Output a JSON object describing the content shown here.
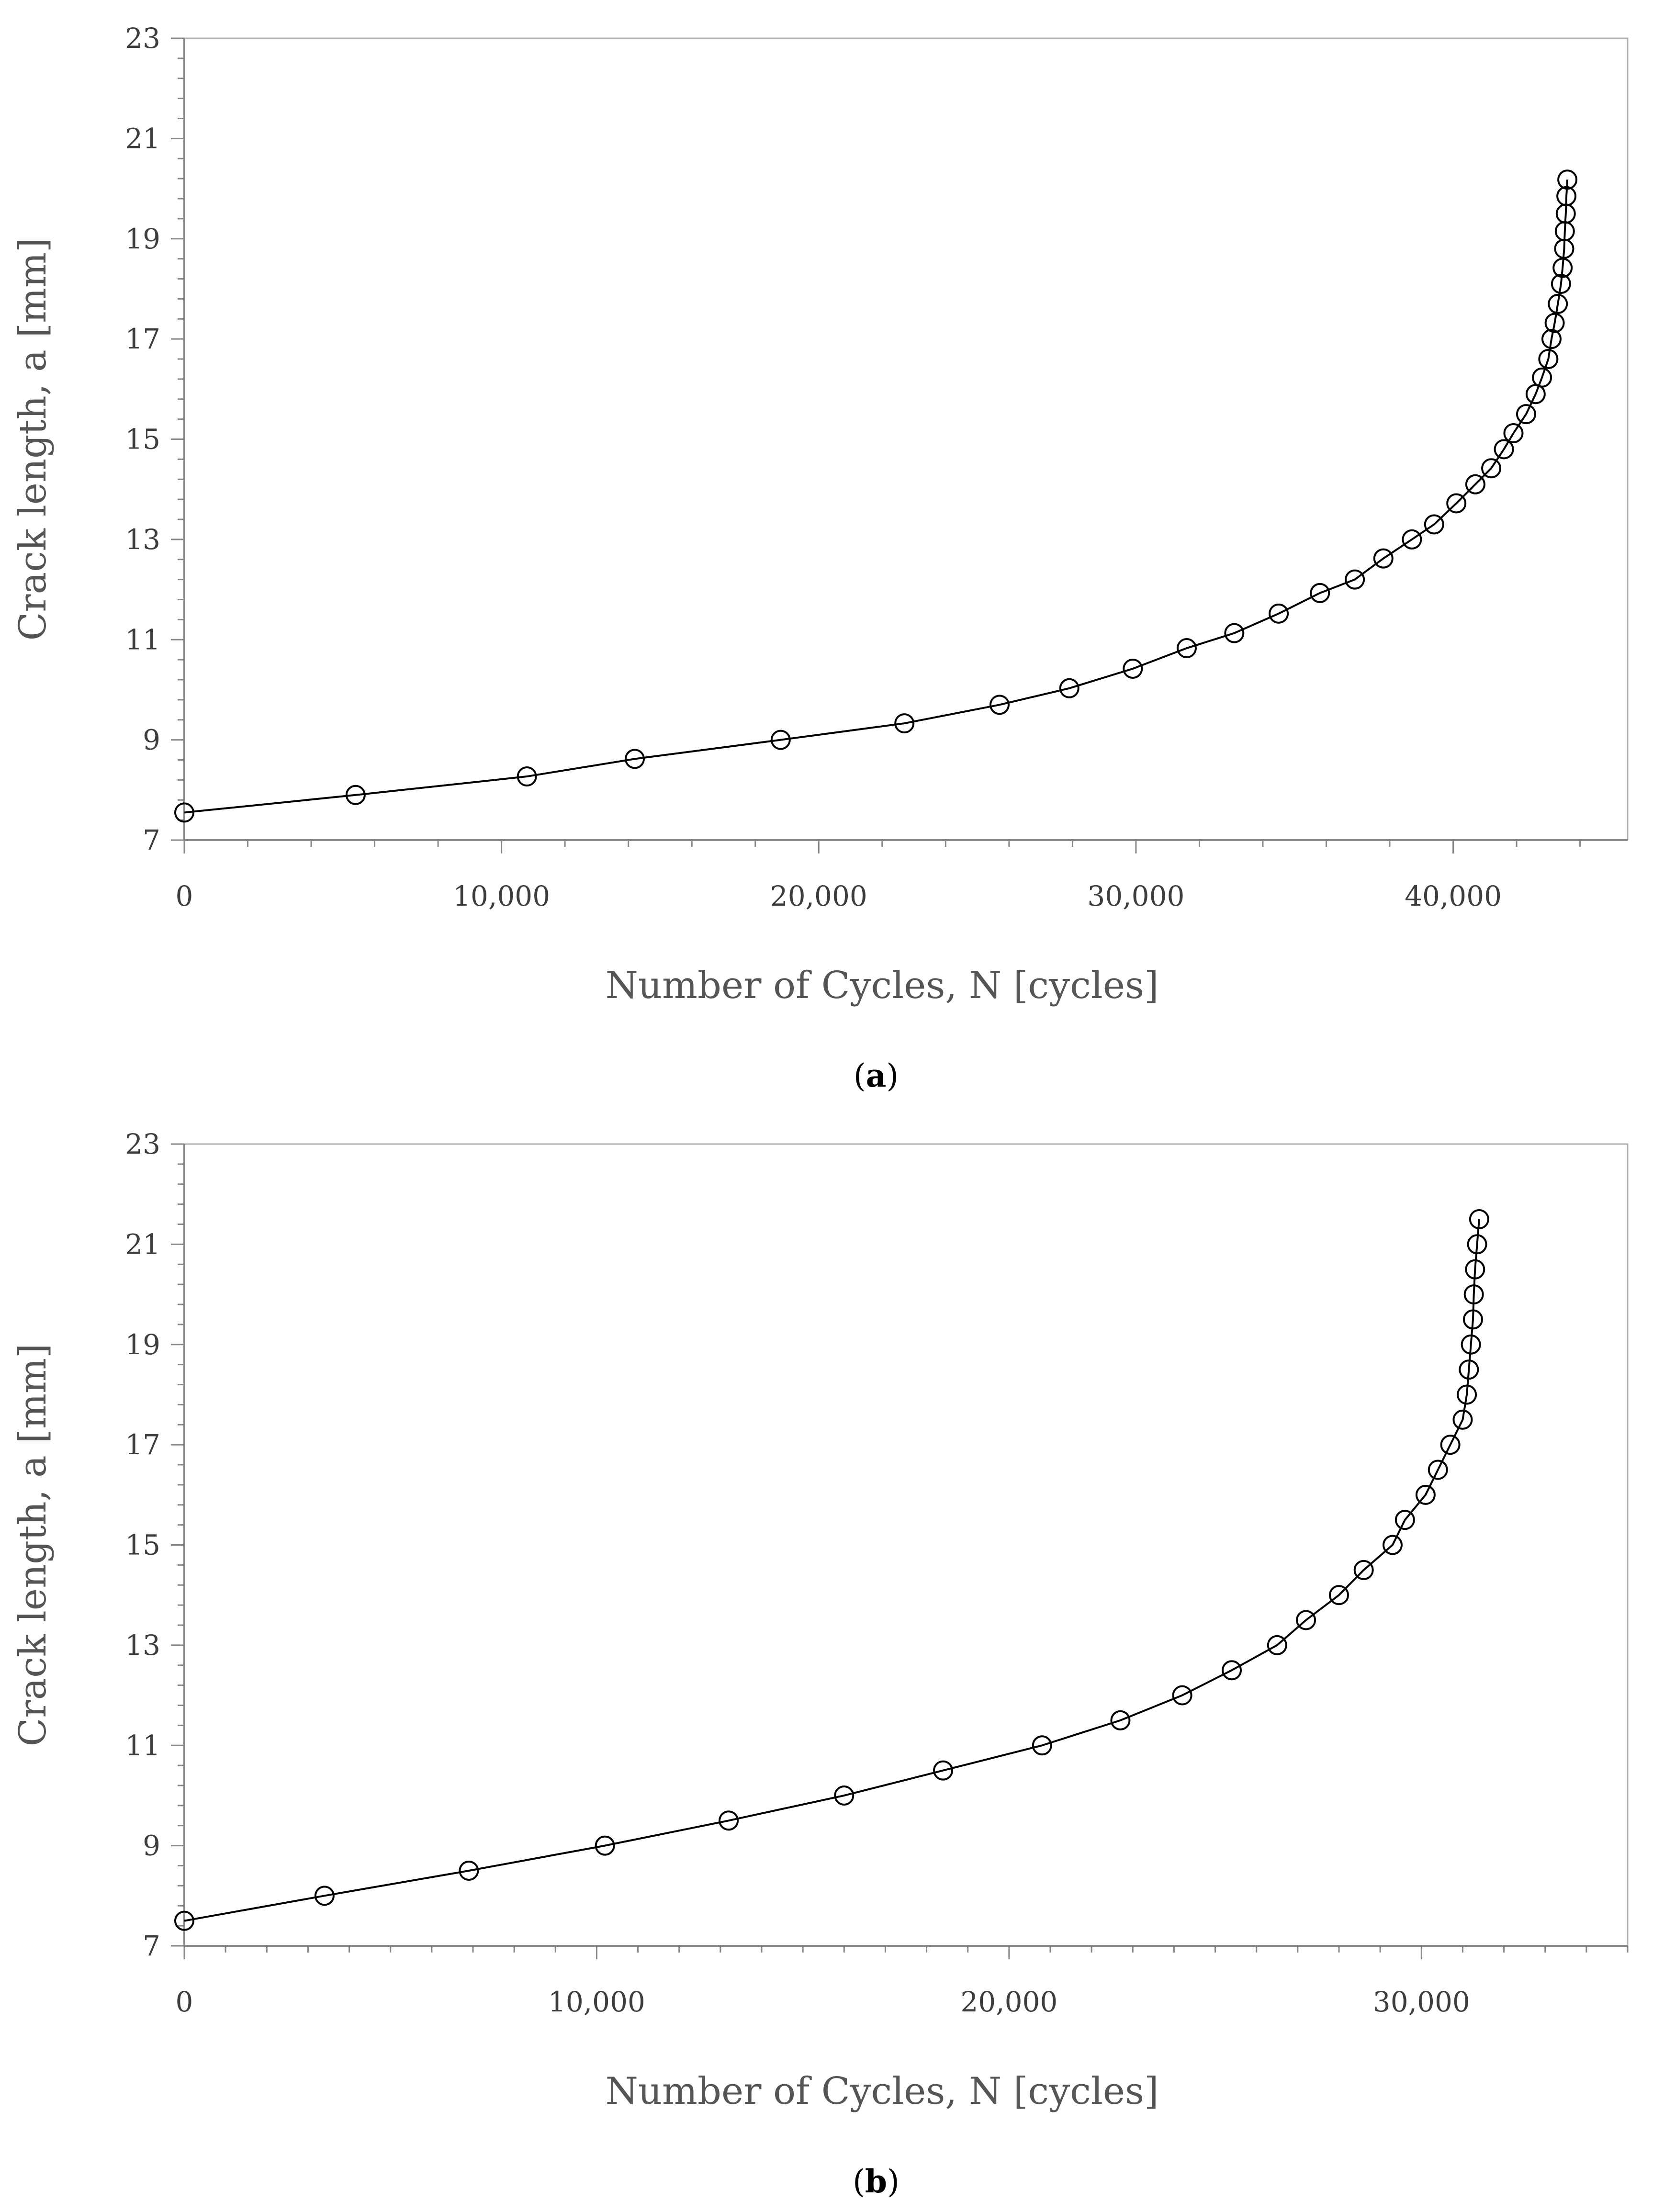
{
  "chart_data": [
    {
      "type": "scatter",
      "panel_label": "a",
      "xlabel": "Number of Cycles, N [cycles]",
      "ylabel": "Crack length, a [mm]",
      "xlim": [
        0,
        45500
      ],
      "ylim": [
        7,
        23
      ],
      "x_ticks": [
        0,
        10000,
        20000,
        30000,
        40000
      ],
      "x_tick_labels": [
        "0",
        "10,000",
        "20,000",
        "30,000",
        "40,000"
      ],
      "y_ticks": [
        7,
        9,
        11,
        13,
        15,
        17,
        19,
        21,
        23
      ],
      "y_tick_labels": [
        "7",
        "9",
        "11",
        "13",
        "15",
        "17",
        "19",
        "21",
        "23"
      ],
      "x_minor_step": 2000,
      "y_minor_step": 0.4,
      "grid": false,
      "marker": "open-circle",
      "series": [
        {
          "points": [
            [
              0,
              7.55
            ],
            [
              5400,
              7.9
            ],
            [
              10800,
              8.27
            ],
            [
              14200,
              8.62
            ],
            [
              18800,
              9.0
            ],
            [
              22700,
              9.33
            ],
            [
              25700,
              9.7
            ],
            [
              27900,
              10.03
            ],
            [
              29900,
              10.42
            ],
            [
              31600,
              10.83
            ],
            [
              33100,
              11.13
            ],
            [
              34500,
              11.52
            ],
            [
              35800,
              11.93
            ],
            [
              36900,
              12.2
            ],
            [
              37800,
              12.62
            ],
            [
              38700,
              13.0
            ],
            [
              39400,
              13.3
            ],
            [
              40100,
              13.72
            ],
            [
              40700,
              14.1
            ],
            [
              41200,
              14.42
            ],
            [
              41600,
              14.8
            ],
            [
              41900,
              15.12
            ],
            [
              42300,
              15.5
            ],
            [
              42600,
              15.9
            ],
            [
              42800,
              16.23
            ],
            [
              43000,
              16.6
            ],
            [
              43100,
              17.0
            ],
            [
              43200,
              17.32
            ],
            [
              43300,
              17.7
            ],
            [
              43400,
              18.1
            ],
            [
              43450,
              18.42
            ],
            [
              43500,
              18.8
            ],
            [
              43520,
              19.15
            ],
            [
              43550,
              19.5
            ],
            [
              43570,
              19.85
            ],
            [
              43600,
              20.18
            ]
          ]
        }
      ]
    },
    {
      "type": "scatter",
      "panel_label": "b",
      "xlabel": "Number of Cycles, N [cycles]",
      "ylabel": "Crack length, a [mm]",
      "xlim": [
        0,
        35000
      ],
      "ylim": [
        7,
        23
      ],
      "x_ticks": [
        0,
        10000,
        20000,
        30000
      ],
      "x_tick_labels": [
        "0",
        "10,000",
        "20,000",
        "30,000"
      ],
      "y_ticks": [
        7,
        9,
        11,
        13,
        15,
        17,
        19,
        21,
        23
      ],
      "y_tick_labels": [
        "7",
        "9",
        "11",
        "13",
        "15",
        "17",
        "19",
        "21",
        "23"
      ],
      "x_minor_step": 1000,
      "y_minor_step": 0.4,
      "grid": false,
      "marker": "open-circle",
      "series": [
        {
          "points": [
            [
              0,
              7.5
            ],
            [
              3400,
              8.0
            ],
            [
              6900,
              8.5
            ],
            [
              10200,
              9.0
            ],
            [
              13200,
              9.5
            ],
            [
              16000,
              10.0
            ],
            [
              18400,
              10.5
            ],
            [
              20800,
              11.0
            ],
            [
              22700,
              11.5
            ],
            [
              24200,
              12.0
            ],
            [
              25400,
              12.5
            ],
            [
              26500,
              13.0
            ],
            [
              27200,
              13.5
            ],
            [
              28000,
              14.0
            ],
            [
              28600,
              14.5
            ],
            [
              29300,
              15.0
            ],
            [
              29600,
              15.5
            ],
            [
              30100,
              16.0
            ],
            [
              30400,
              16.5
            ],
            [
              30700,
              17.0
            ],
            [
              31000,
              17.5
            ],
            [
              31100,
              18.0
            ],
            [
              31150,
              18.5
            ],
            [
              31200,
              19.0
            ],
            [
              31250,
              19.5
            ],
            [
              31270,
              20.0
            ],
            [
              31300,
              20.5
            ],
            [
              31350,
              21.0
            ],
            [
              31400,
              21.5
            ]
          ]
        }
      ]
    }
  ]
}
